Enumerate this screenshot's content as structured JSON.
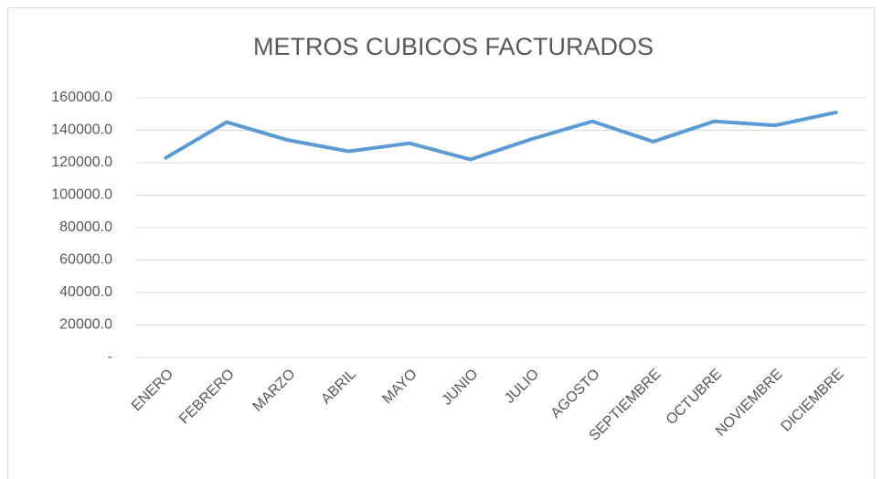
{
  "chart_data": {
    "type": "line",
    "title": "METROS CUBICOS FACTURADOS",
    "categories": [
      "ENERO",
      "FEBRERO",
      "MARZO",
      "ABRIL",
      "MAYO",
      "JUNIO",
      "JULIO",
      "AGOSTO",
      "SEPTIEMBRE",
      "OCTUBRE",
      "NOVIEMBRE",
      "DICIEMBRE"
    ],
    "values": [
      123000,
      145000,
      134000,
      127000,
      132000,
      122000,
      134500,
      145500,
      133000,
      145500,
      143000,
      151000
    ],
    "color": "#5b9bd5",
    "ylim": [
      0,
      160000
    ],
    "yticks": [
      {
        "value": 0,
        "label": "-"
      },
      {
        "value": 20000,
        "label": "20000.0"
      },
      {
        "value": 40000,
        "label": "40000.0"
      },
      {
        "value": 60000,
        "label": "60000.0"
      },
      {
        "value": 80000,
        "label": "80000.0"
      },
      {
        "value": 100000,
        "label": "100000.0"
      },
      {
        "value": 120000,
        "label": "120000.0"
      },
      {
        "value": 140000,
        "label": "140000.0"
      },
      {
        "value": 160000,
        "label": "160000.0"
      }
    ],
    "grid": true
  }
}
